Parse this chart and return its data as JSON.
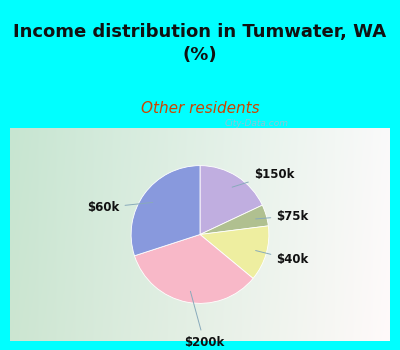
{
  "title": "Income distribution in Tumwater, WA\n(%)",
  "subtitle": "Other residents",
  "title_color": "#111111",
  "subtitle_color": "#cc4400",
  "title_fontsize": 13,
  "subtitle_fontsize": 11,
  "slices": [
    {
      "label": "$150k",
      "value": 18,
      "color": "#c0aee0"
    },
    {
      "label": "$75k",
      "value": 5,
      "color": "#b0c090"
    },
    {
      "label": "$40k",
      "value": 13,
      "color": "#eeeea0"
    },
    {
      "label": "$200k",
      "value": 34,
      "color": "#f8b8c8"
    },
    {
      "label": "$60k",
      "value": 30,
      "color": "#8899dd"
    }
  ],
  "startangle": 90,
  "cyan_bg": "#00ffff",
  "chart_border_color": "#00ffff",
  "label_color": "#111111",
  "label_fontsize": 8.5,
  "watermark": "City-Data.com",
  "watermark_color": "#aabbcc",
  "line_color": "#88aabb"
}
